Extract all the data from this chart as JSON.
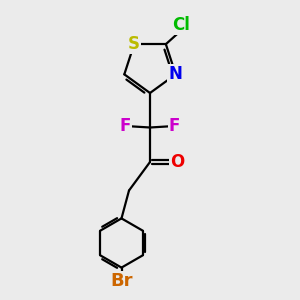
{
  "bg_color": "#ebebeb",
  "bond_color": "#000000",
  "atom_colors": {
    "Cl": "#00bb00",
    "S": "#bbbb00",
    "N": "#0000ee",
    "F": "#cc00cc",
    "O": "#ee0000",
    "Br": "#cc6600",
    "C": "#000000"
  },
  "bond_width": 1.6,
  "font_size": 12,
  "fig_size": [
    3.0,
    3.0
  ],
  "dpi": 100,
  "xlim": [
    0,
    10
  ],
  "ylim": [
    0,
    10
  ]
}
